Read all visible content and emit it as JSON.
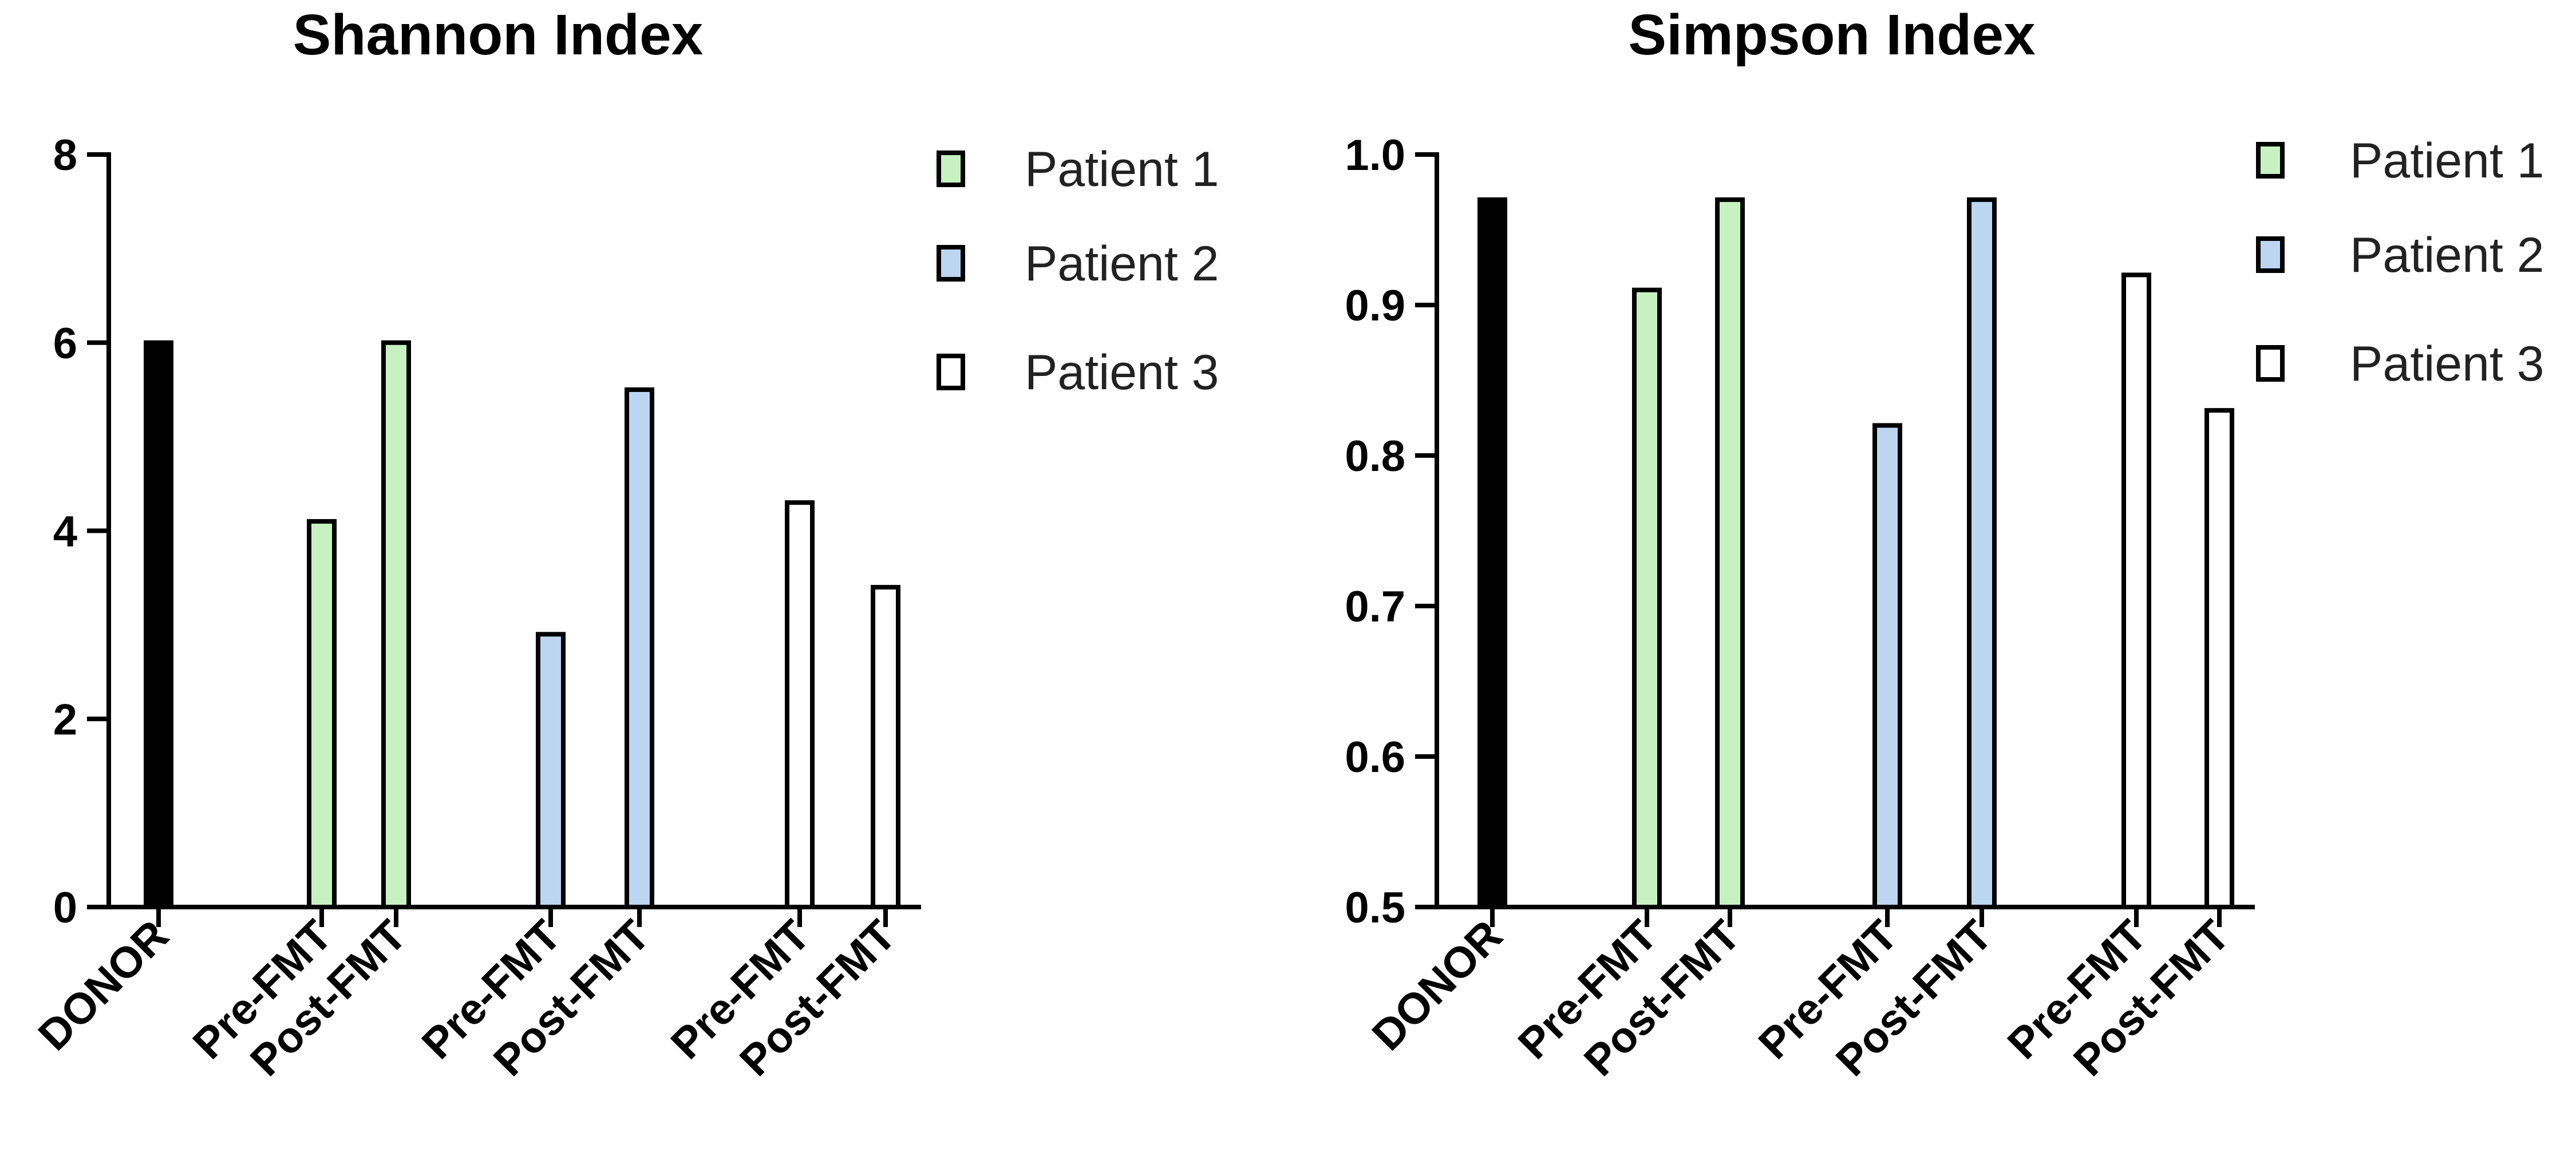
{
  "colors": {
    "donor": "#000000",
    "patient_1": "#c6f2c0",
    "patient_2": "#bcd6f2",
    "patient_3": "#ffffff",
    "stroke": "#000000"
  },
  "chart_data": [
    {
      "type": "bar",
      "title": "Shannon Index",
      "xlabel": "",
      "ylabel": "",
      "ylim": [
        0,
        8
      ],
      "yticks": [
        0,
        2,
        4,
        6,
        8
      ],
      "ytick_labels": [
        "0",
        "2",
        "4",
        "6",
        "8"
      ],
      "categories": [
        "DONOR",
        "Pre-FMT",
        "Post-FMT",
        "Pre-FMT",
        "Post-FMT",
        "Pre-FMT",
        "Post-FMT"
      ],
      "groups": [
        "donor",
        "patient_1",
        "patient_1",
        "patient_2",
        "patient_2",
        "patient_3",
        "patient_3"
      ],
      "values": [
        6.0,
        4.1,
        6.0,
        2.9,
        5.5,
        4.3,
        3.4
      ],
      "legend": [
        {
          "label": "Patient 1",
          "color_key": "patient_1"
        },
        {
          "label": "Patient 2",
          "color_key": "patient_2"
        },
        {
          "label": "Patient 3",
          "color_key": "patient_3"
        }
      ],
      "legend_position": "top-right",
      "grid": false
    },
    {
      "type": "bar",
      "title": "Simpson Index",
      "xlabel": "",
      "ylabel": "",
      "ylim": [
        0.5,
        1.0
      ],
      "yticks": [
        0.5,
        0.6,
        0.7,
        0.8,
        0.9,
        1.0
      ],
      "ytick_labels": [
        "0.5",
        "0.6",
        "0.7",
        "0.8",
        "0.9",
        "1.0"
      ],
      "categories": [
        "DONOR",
        "Pre-FMT",
        "Post-FMT",
        "Pre-FMT",
        "Post-FMT",
        "Pre-FMT",
        "Post-FMT"
      ],
      "groups": [
        "donor",
        "patient_1",
        "patient_1",
        "patient_2",
        "patient_2",
        "patient_3",
        "patient_3"
      ],
      "values": [
        0.97,
        0.91,
        0.97,
        0.82,
        0.97,
        0.92,
        0.83
      ],
      "legend": [
        {
          "label": "Patient 1",
          "color_key": "patient_1"
        },
        {
          "label": "Patient 2",
          "color_key": "patient_2"
        },
        {
          "label": "Patient 3",
          "color_key": "patient_3"
        }
      ],
      "legend_position": "top-right",
      "grid": false
    }
  ]
}
